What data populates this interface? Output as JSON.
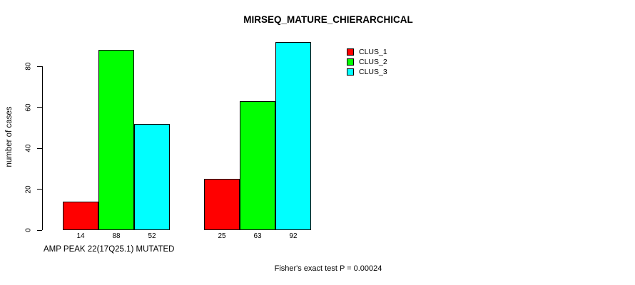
{
  "chart_data": {
    "type": "bar",
    "title": "MIRSEQ_MATURE_CHIERARCHICAL",
    "xlabel": "AMP PEAK 22(17Q25.1) MUTATED",
    "ylabel": "number of cases",
    "footer": "Fisher's exact test P = 0.00024",
    "categories": [
      "group_1",
      "group_2"
    ],
    "series": [
      {
        "name": "CLUS_1",
        "color": "#ff0000",
        "values": [
          14,
          25
        ]
      },
      {
        "name": "CLUS_2",
        "color": "#00ff00",
        "values": [
          88,
          63
        ]
      },
      {
        "name": "CLUS_3",
        "color": "#00ffff",
        "values": [
          52,
          92
        ]
      }
    ],
    "bar_value_labels": [
      [
        14,
        88,
        52
      ],
      [
        25,
        63,
        92
      ]
    ],
    "yticks": [
      0,
      20,
      40,
      60,
      80
    ],
    "ylim": [
      0,
      92
    ],
    "grid": false,
    "legend_position": "top-right",
    "axis_color": "#000000",
    "background_color": "#ffffff"
  }
}
